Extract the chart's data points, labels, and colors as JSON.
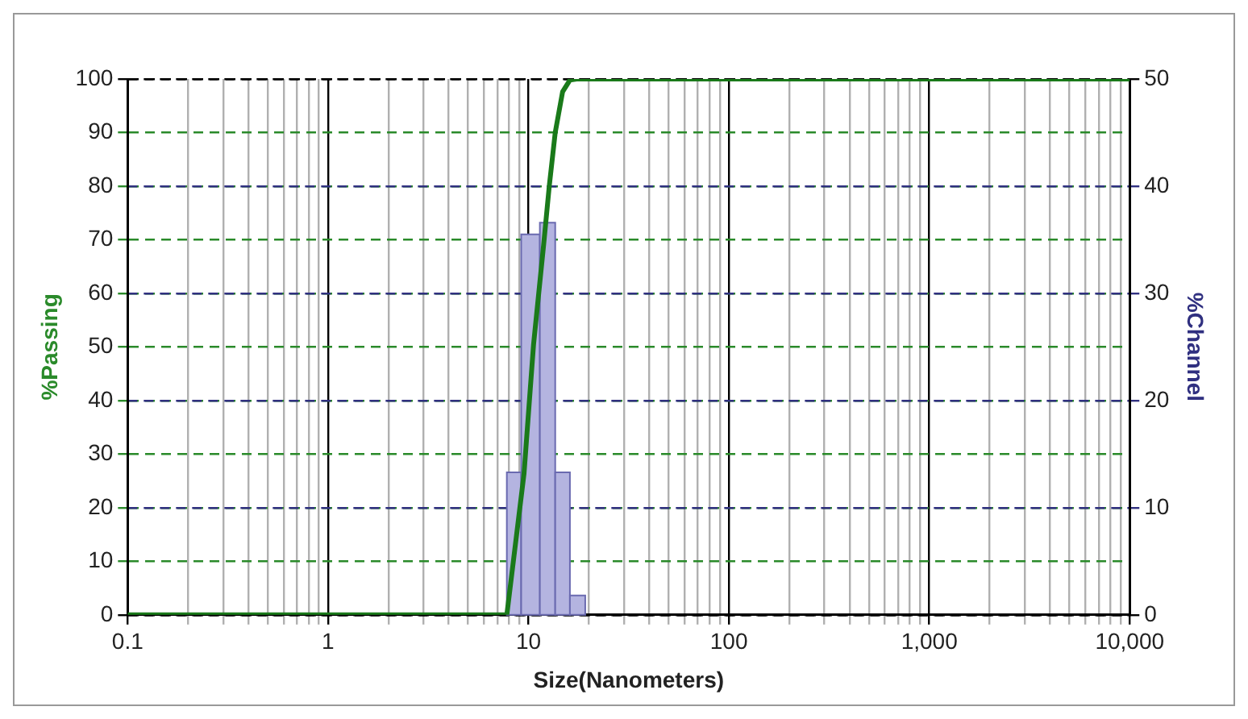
{
  "chart_data": {
    "type": "line",
    "xlabel": "Size(Nanometers)",
    "ylabel": "%Passing",
    "y2label": "%Channel",
    "log": "x",
    "grid": true,
    "legend": false,
    "xlim": [
      0.1,
      10000
    ],
    "xticks": [
      {
        "value": 0.1,
        "label": "0.1"
      },
      {
        "value": 0.2,
        "label": null
      },
      {
        "value": 0.3,
        "label": null
      },
      {
        "value": 0.4,
        "label": null
      },
      {
        "value": 0.5,
        "label": null
      },
      {
        "value": 0.6,
        "label": null
      },
      {
        "value": 0.7,
        "label": null
      },
      {
        "value": 0.8,
        "label": null
      },
      {
        "value": 0.9,
        "label": null
      },
      1,
      {
        "value": 2,
        "label": null
      },
      {
        "value": 3,
        "label": null
      },
      {
        "value": 4,
        "label": null
      },
      {
        "value": 5,
        "label": null
      },
      {
        "value": 6,
        "label": null
      },
      {
        "value": 7,
        "label": null
      },
      {
        "value": 8,
        "label": null
      },
      {
        "value": 9,
        "label": null
      },
      10,
      {
        "value": 20,
        "label": null
      },
      {
        "value": 30,
        "label": null
      },
      {
        "value": 40,
        "label": null
      },
      {
        "value": 50,
        "label": null
      },
      {
        "value": 60,
        "label": null
      },
      {
        "value": 70,
        "label": null
      },
      {
        "value": 80,
        "label": null
      },
      {
        "value": 90,
        "label": null
      },
      100,
      {
        "value": 200,
        "label": null
      },
      {
        "value": 300,
        "label": null
      },
      {
        "value": 400,
        "label": null
      },
      {
        "value": 500,
        "label": null
      },
      {
        "value": 600,
        "label": null
      },
      {
        "value": 700,
        "label": null
      },
      {
        "value": 800,
        "label": null
      },
      {
        "value": 900,
        "label": null
      },
      {
        "value": 1000,
        "label": "1,000"
      },
      {
        "value": 2000,
        "label": null
      },
      {
        "value": 3000,
        "label": null
      },
      {
        "value": 4000,
        "label": null
      },
      {
        "value": 5000,
        "label": null
      },
      {
        "value": 6000,
        "label": null
      },
      {
        "value": 7000,
        "label": null
      },
      {
        "value": 8000,
        "label": null
      },
      {
        "value": 9000,
        "label": null
      },
      {
        "value": 10000,
        "label": "10,000"
      }
    ],
    "ylim": [
      0,
      100
    ],
    "yticks": [
      0,
      10,
      20,
      30,
      40,
      50,
      60,
      70,
      80,
      90,
      100
    ],
    "y2lim": [
      0,
      50
    ],
    "y2ticks": [
      0,
      10,
      20,
      30,
      40,
      50
    ],
    "series": [
      {
        "type": "histogram",
        "axis": "y2",
        "color": "#b4b4e0",
        "bins": [
          7.8,
          9.2,
          11.4,
          13.6,
          16.1,
          19.2
        ],
        "values": [
          13.3,
          35.5,
          36.6,
          13.3,
          1.8
        ]
      },
      {
        "type": "line",
        "color": "#1a7a1a",
        "x": [
          0.1,
          7.8,
          9.5,
          10.6,
          11.9,
          12.7,
          13.6,
          14.8,
          16.1,
          17.4,
          10000
        ],
        "values": [
          0,
          0,
          26.3,
          50.4,
          69,
          80,
          90,
          97.6,
          99.8,
          100,
          100
        ]
      }
    ]
  }
}
